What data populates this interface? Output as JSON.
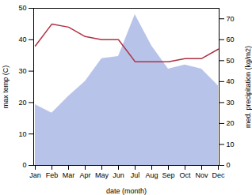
{
  "chart_data": {
    "type": "combo",
    "xlabel": "date (month)",
    "ylabel": "max temp (C)",
    "y2label": "med. precipitation (kg/m2)",
    "categories": [
      "Jan",
      "Feb",
      "Mar",
      "Apr",
      "May",
      "Jun",
      "Jul",
      "Aug",
      "Sep",
      "Oct",
      "Nov",
      "Dec"
    ],
    "series": [
      {
        "type": "area",
        "axis": "y2",
        "color": "#b0bce8",
        "values": [
          29,
          25,
          33,
          40,
          51,
          52,
          72,
          57,
          46,
          48,
          46,
          38
        ]
      },
      {
        "type": "line",
        "color": "#b03040",
        "values": [
          38,
          45,
          44,
          41,
          40,
          40,
          33,
          33,
          33,
          34,
          34,
          37
        ]
      }
    ],
    "ylim": [
      0,
      50
    ],
    "yticks": [
      0,
      10,
      20,
      30,
      40,
      50
    ],
    "y2lim": [
      0,
      75
    ],
    "y2ticks": [
      0,
      10,
      20,
      30,
      40,
      50,
      60,
      70
    ],
    "grid": false
  }
}
